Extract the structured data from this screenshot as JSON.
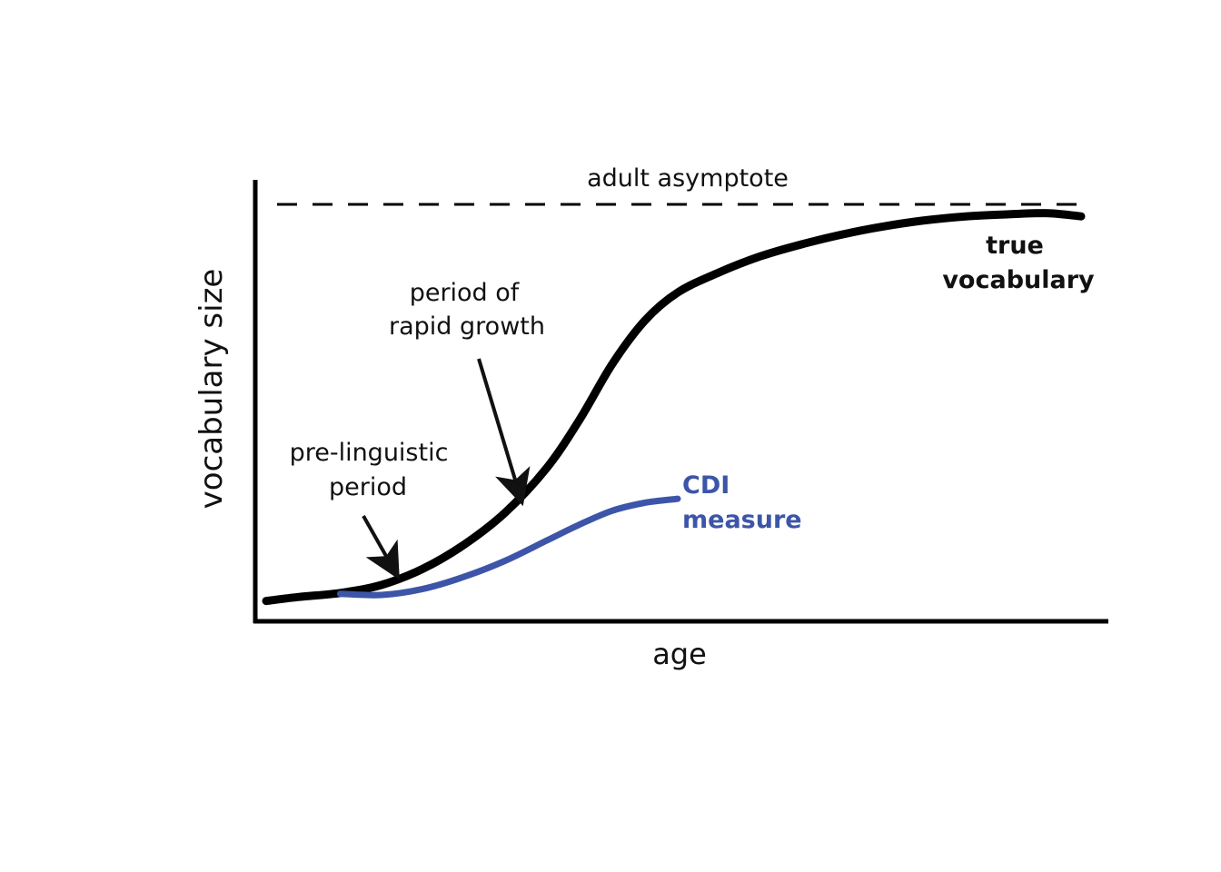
{
  "chart_data": {
    "type": "line",
    "title": "",
    "xlabel": "age",
    "ylabel": "vocabulary size",
    "grid": false,
    "legend": "none",
    "colors": {
      "axis": "#000000",
      "true_vocabulary": "#000000",
      "cdi_measure": "#3d55a8",
      "text": "#111111"
    },
    "reference_line": {
      "label": "adult asymptote",
      "style": "dashed"
    },
    "series": [
      {
        "name": "true vocabulary",
        "label_lines": [
          "true",
          "vocabulary"
        ],
        "color": "#000000",
        "x": [
          0,
          4,
          9,
          14,
          19,
          24,
          29,
          34,
          38,
          42,
          46,
          50,
          55,
          60,
          65,
          70,
          75,
          80,
          85,
          90,
          95,
          99
        ],
        "y": [
          1,
          2,
          3,
          5,
          9,
          15,
          23,
          34,
          46,
          60,
          71,
          78,
          83,
          87,
          90,
          92.5,
          94.5,
          96,
          97,
          97.5,
          97.8,
          97
        ]
      },
      {
        "name": "CDI measure",
        "label_lines": [
          "CDI",
          "measure"
        ],
        "color": "#3d55a8",
        "x": [
          9,
          14,
          19,
          24,
          29,
          34,
          38,
          42,
          46,
          50
        ],
        "y": [
          2.8,
          2.5,
          4,
          7,
          11,
          16,
          20,
          23.5,
          25.5,
          26.5
        ]
      }
    ],
    "annotations": [
      {
        "id": "rapid-growth",
        "lines": [
          "period of",
          "rapid growth"
        ]
      },
      {
        "id": "pre-linguistic",
        "lines": [
          "pre-linguistic",
          "period"
        ]
      }
    ]
  }
}
